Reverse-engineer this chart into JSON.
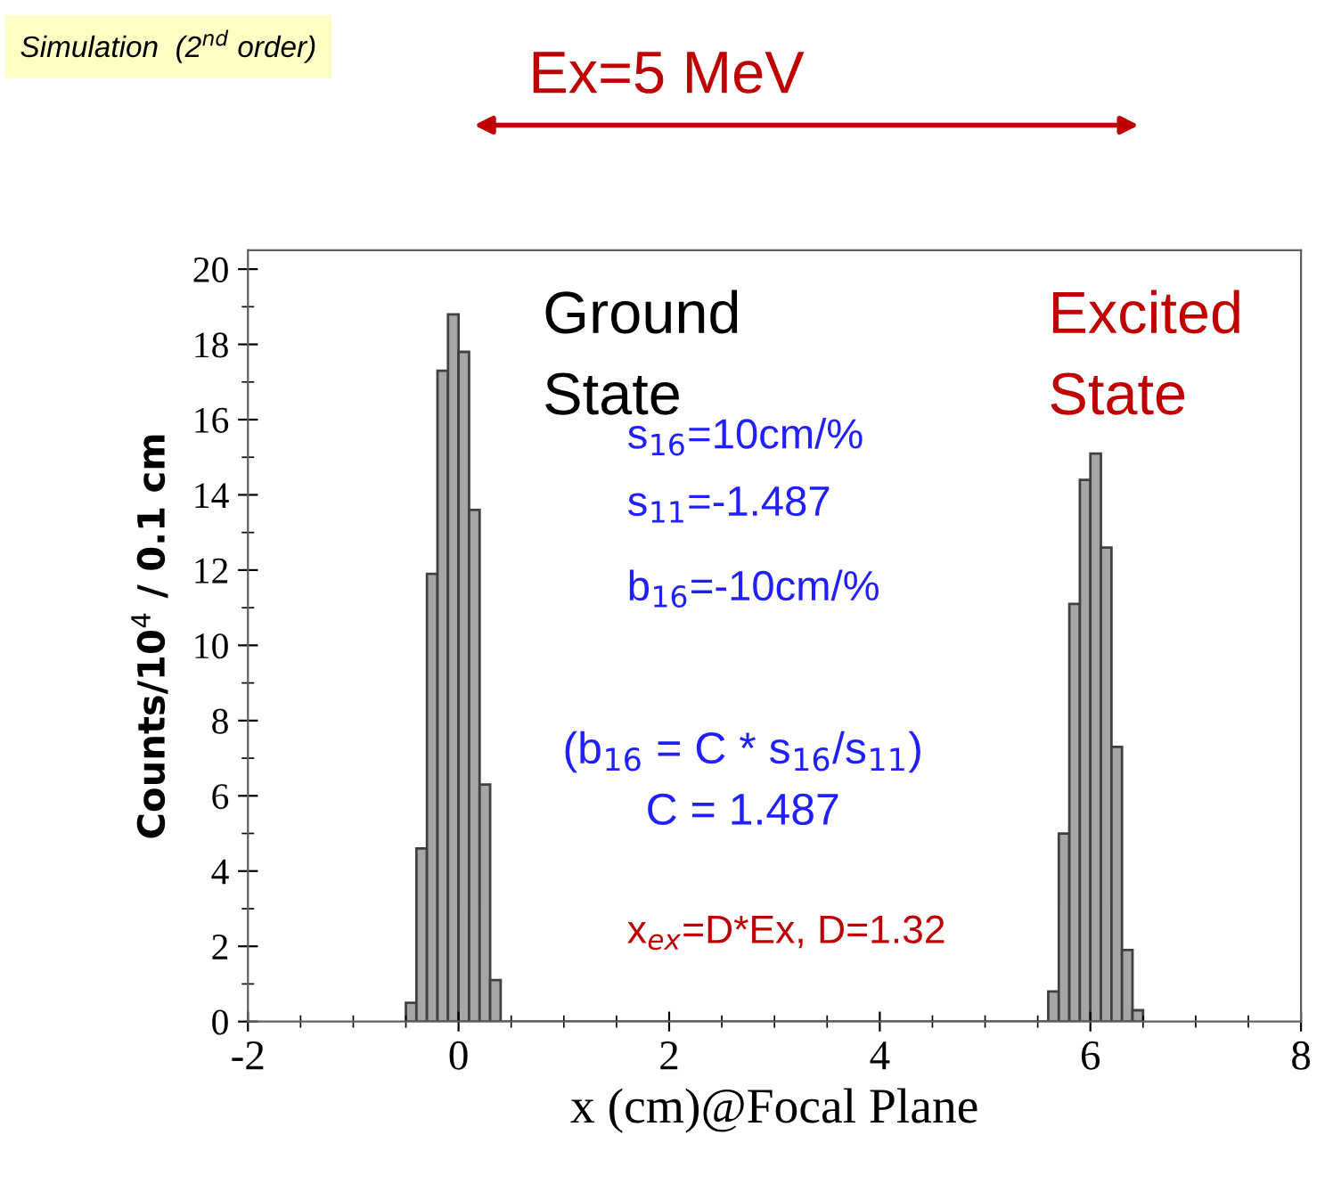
{
  "chart_data": {
    "type": "histogram",
    "title": "Ex=5 MeV",
    "xlabel": "x (cm)@Focal Plane",
    "ylabel": "Counts/10$^{4}$ / 0.1 cm",
    "annotations": [
      "Simulation  (2$^{nd}$ order)",
      "Ground\nState",
      "Excited\nState",
      "s$_{16}$=10cm/%",
      "s$_{11}$=-1.487",
      "b$_{16}$=-10cm/%",
      "(b$_{16}$ = C * s$_{16}$/s$_{11}$)\nC = 1.487",
      "x$_{ex}$=D*Ex, D=1.32"
    ],
    "bins": [
      -0.5,
      -0.4,
      -0.3,
      -0.2,
      -0.1,
      0.0,
      0.1,
      0.2,
      0.3,
      0.4,
      0.5,
      0.6,
      0.7,
      0.8,
      0.9,
      1.0,
      1.1,
      1.2,
      1.3,
      1.4,
      1.5,
      1.6,
      1.7,
      1.8,
      1.9,
      2.0,
      2.1,
      2.2,
      2.3,
      2.4,
      2.5,
      2.6,
      2.7,
      2.8,
      2.9,
      3.0,
      3.1,
      3.2,
      3.3,
      3.4,
      3.5,
      3.6,
      3.7,
      3.8,
      3.9,
      4.0,
      4.1,
      4.2,
      4.3,
      4.4,
      4.5,
      4.6,
      4.7,
      4.8,
      4.9,
      5.0,
      5.1,
      5.2,
      5.3,
      5.4,
      5.5,
      5.6,
      5.7,
      5.8,
      5.9,
      6.0,
      6.1,
      6.2,
      6.3,
      6.4,
      6.5
    ],
    "values": [
      0.5,
      4.6,
      11.9,
      17.3,
      18.8,
      17.8,
      13.6,
      6.3,
      1.1,
      0,
      0,
      0,
      0,
      0,
      0,
      0,
      0,
      0,
      0,
      0,
      0,
      0,
      0,
      0,
      0,
      0,
      0,
      0,
      0,
      0,
      0,
      0,
      0,
      0,
      0,
      0,
      0,
      0,
      0,
      0,
      0,
      0,
      0,
      0,
      0,
      0,
      0,
      0,
      0,
      0,
      0,
      0,
      0,
      0,
      0,
      0,
      0,
      0,
      0,
      0,
      0,
      0.8,
      5.0,
      11.1,
      14.4,
      15.1,
      12.6,
      7.3,
      1.9,
      0.3
    ],
    "color": "#a6a6a6",
    "xlim": [
      -2,
      8
    ],
    "xticks": [
      -2,
      0,
      2,
      4,
      6,
      8
    ],
    "ylim": [
      0,
      20.5
    ],
    "yticks": [
      0,
      2,
      4,
      6,
      8,
      10,
      12,
      14,
      16,
      18,
      20
    ],
    "grid": false,
    "legend": false
  }
}
